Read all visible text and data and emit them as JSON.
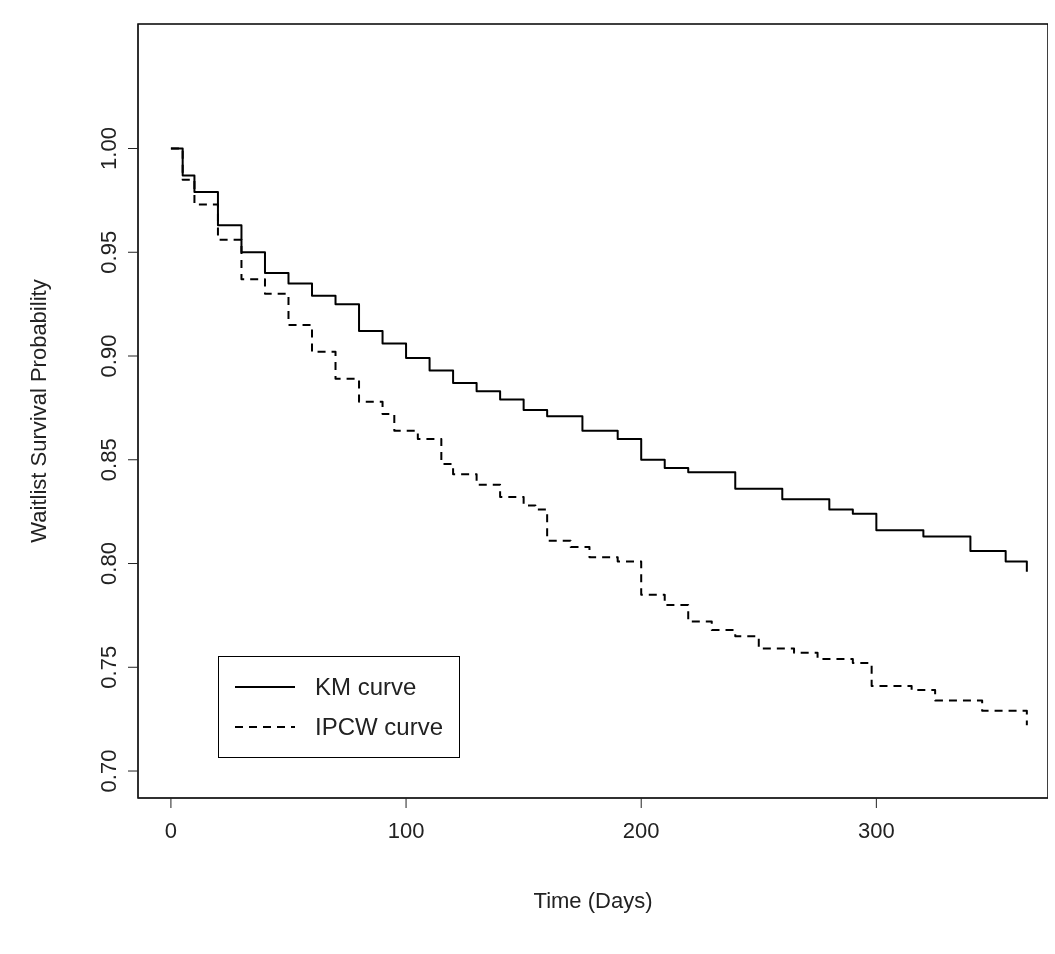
{
  "chart_data": {
    "type": "step",
    "xlabel": "Time (Days)",
    "ylabel": "Waitlist Survival Probability",
    "xlim": [
      -14,
      373
    ],
    "ylim": [
      0.687,
      1.06
    ],
    "xticks": [
      0,
      100,
      200,
      300
    ],
    "yticks": [
      {
        "value": 0.7,
        "label": "0.70"
      },
      {
        "value": 0.75,
        "label": "0.75"
      },
      {
        "value": 0.8,
        "label": "0.80"
      },
      {
        "value": 0.85,
        "label": "0.85"
      },
      {
        "value": 0.9,
        "label": "0.90"
      },
      {
        "value": 0.95,
        "label": "0.95"
      },
      {
        "value": 1.0,
        "label": "1.00"
      }
    ],
    "legend": "bottom left",
    "marker": "none",
    "series": [
      {
        "name": "KM curve",
        "color": "#000000",
        "line_style": "solid",
        "x": [
          0,
          5,
          10,
          20,
          30,
          40,
          50,
          60,
          70,
          80,
          90,
          100,
          110,
          120,
          130,
          140,
          150,
          160,
          175,
          190,
          200,
          210,
          220,
          240,
          260,
          280,
          290,
          300,
          320,
          340,
          355,
          364
        ],
        "values": [
          1.0,
          0.987,
          0.979,
          0.963,
          0.95,
          0.94,
          0.935,
          0.929,
          0.925,
          0.912,
          0.906,
          0.899,
          0.893,
          0.887,
          0.883,
          0.879,
          0.874,
          0.871,
          0.864,
          0.86,
          0.85,
          0.846,
          0.844,
          0.836,
          0.831,
          0.826,
          0.824,
          0.816,
          0.813,
          0.806,
          0.801,
          0.796
        ]
      },
      {
        "name": "IPCW curve",
        "color": "#000000",
        "line_style": "dashed",
        "x": [
          0,
          5,
          10,
          20,
          30,
          40,
          50,
          60,
          70,
          80,
          90,
          95,
          105,
          115,
          120,
          130,
          140,
          150,
          155,
          160,
          170,
          178,
          190,
          200,
          210,
          220,
          230,
          240,
          250,
          265,
          275,
          290,
          298,
          315,
          325,
          345,
          364
        ],
        "values": [
          1.0,
          0.985,
          0.973,
          0.956,
          0.937,
          0.93,
          0.915,
          0.902,
          0.889,
          0.878,
          0.872,
          0.864,
          0.86,
          0.848,
          0.843,
          0.838,
          0.832,
          0.828,
          0.826,
          0.811,
          0.808,
          0.803,
          0.801,
          0.785,
          0.78,
          0.772,
          0.768,
          0.765,
          0.759,
          0.757,
          0.754,
          0.752,
          0.741,
          0.739,
          0.734,
          0.729,
          0.722
        ]
      }
    ]
  }
}
